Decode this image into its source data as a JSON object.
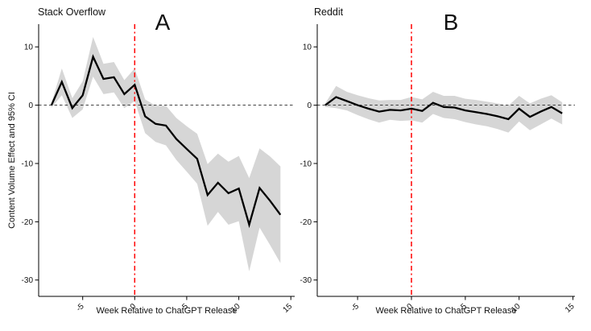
{
  "chart_data": [
    {
      "type": "line",
      "panel_label": "A",
      "title": "Stack Overflow",
      "xlabel": "Week Relative to ChatGPT Release",
      "ylabel": "Content Volume Effect and 95% CI",
      "x": [
        -8,
        -7,
        -6,
        -5,
        -4,
        -3,
        -2,
        -1,
        0,
        1,
        2,
        3,
        4,
        5,
        6,
        7,
        8,
        9,
        10,
        11,
        12,
        13,
        14
      ],
      "y": [
        0.0,
        4.0,
        -0.5,
        1.7,
        8.3,
        4.5,
        4.8,
        1.9,
        3.5,
        -1.9,
        -3.2,
        -3.5,
        -5.8,
        -7.5,
        -9.2,
        -15.4,
        -13.3,
        -15.1,
        -14.3,
        -20.5,
        -14.2,
        -16.4,
        -18.8
      ],
      "ci_lower": [
        -0.4,
        1.7,
        -2.2,
        -0.7,
        4.9,
        1.9,
        2.2,
        -0.5,
        0.7,
        -4.8,
        -6.3,
        -6.9,
        -9.4,
        -11.4,
        -13.5,
        -20.7,
        -18.3,
        -20.5,
        -19.9,
        -28.5,
        -21.0,
        -24.0,
        -27.1
      ],
      "ci_upper": [
        0.4,
        6.3,
        1.2,
        4.1,
        11.7,
        7.1,
        7.4,
        4.3,
        6.3,
        1.0,
        -0.1,
        -0.1,
        -2.2,
        -3.6,
        -4.9,
        -10.1,
        -8.3,
        -9.7,
        -8.7,
        -12.5,
        -7.4,
        -8.8,
        -10.5
      ],
      "vline_x": 0,
      "hline_y": 0,
      "xticks": [
        -5,
        0,
        5,
        10,
        15
      ],
      "yticks": [
        10,
        0,
        -10,
        -20,
        -30
      ],
      "xlim": [
        -9.23,
        15.37
      ],
      "ylim": [
        -32.8,
        13.9
      ],
      "line_color": "#000000",
      "ribbon_color": "#D6D6D6",
      "vline_color": "#FF0000",
      "legend": "none",
      "grid": "off"
    },
    {
      "type": "line",
      "panel_label": "B",
      "title": "Reddit",
      "xlabel": "Week Relative to ChatGPT Release",
      "ylabel": "Content Volume Effect and 95% CI",
      "x": [
        -8,
        -7,
        -6,
        -5,
        -4,
        -3,
        -2,
        -1,
        0,
        1,
        2,
        3,
        4,
        5,
        6,
        7,
        8,
        9,
        10,
        11,
        12,
        13,
        14
      ],
      "y": [
        0.0,
        1.4,
        0.7,
        0.0,
        -0.6,
        -1.1,
        -0.8,
        -0.9,
        -0.6,
        -1.0,
        0.4,
        -0.3,
        -0.4,
        -0.9,
        -1.2,
        -1.5,
        -1.9,
        -2.4,
        -0.6,
        -2.0,
        -1.1,
        -0.3,
        -1.4
      ],
      "ci_lower": [
        -0.3,
        -0.5,
        -0.9,
        -1.7,
        -2.4,
        -3.0,
        -2.5,
        -2.7,
        -2.6,
        -3.0,
        -1.5,
        -2.2,
        -2.4,
        -2.9,
        -3.3,
        -3.6,
        -4.1,
        -4.7,
        -2.8,
        -4.3,
        -3.3,
        -2.3,
        -3.3
      ],
      "ci_upper": [
        0.3,
        3.3,
        2.3,
        1.7,
        1.2,
        0.8,
        0.9,
        0.9,
        1.4,
        1.0,
        2.3,
        1.6,
        1.6,
        1.1,
        0.9,
        0.6,
        0.3,
        -0.1,
        1.6,
        0.3,
        1.1,
        1.7,
        0.5
      ],
      "vline_x": 0,
      "hline_y": 0,
      "xticks": [
        -5,
        0,
        5,
        10,
        15
      ],
      "yticks": [
        10,
        0,
        -10,
        -20,
        -30
      ],
      "xlim": [
        -8.75,
        15.18
      ],
      "ylim": [
        -32.8,
        13.9
      ],
      "line_color": "#000000",
      "ribbon_color": "#D6D6D6",
      "vline_color": "#FF0000",
      "legend": "none",
      "grid": "off"
    }
  ]
}
